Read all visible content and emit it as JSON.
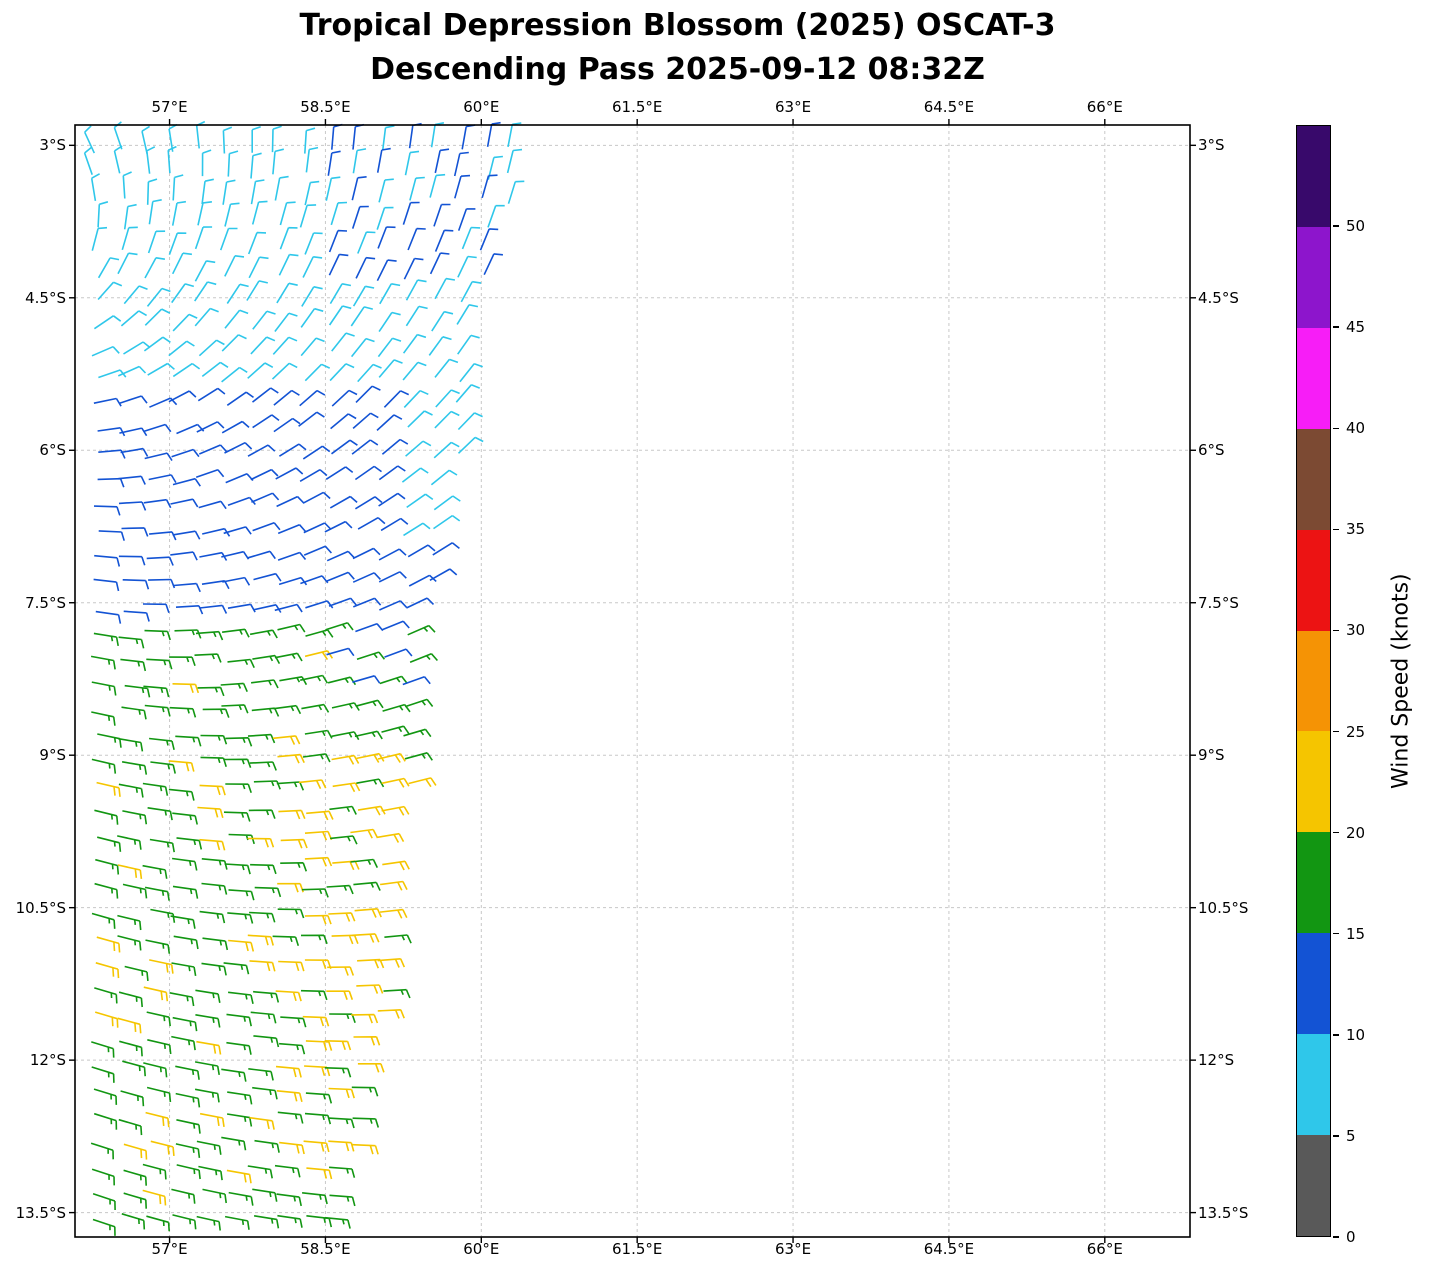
{
  "title": {
    "line1": "Tropical Depression Blossom (2025) OSCAT-3",
    "line2": "Descending Pass 2025-09-12 08:32Z"
  },
  "axes": {
    "lon_min": 56.09,
    "lon_max": 66.82,
    "lat_min": 2.8,
    "lat_max": 13.74,
    "x_ticks": [
      {
        "lon": 57.0,
        "label": "57°E"
      },
      {
        "lon": 58.5,
        "label": "58.5°E"
      },
      {
        "lon": 60.0,
        "label": "60°E"
      },
      {
        "lon": 61.5,
        "label": "61.5°E"
      },
      {
        "lon": 63.0,
        "label": "63°E"
      },
      {
        "lon": 64.5,
        "label": "64.5°E"
      },
      {
        "lon": 66.0,
        "label": "66°E"
      }
    ],
    "y_ticks": [
      {
        "lat": 3.0,
        "label": "3°S"
      },
      {
        "lat": 4.5,
        "label": "4.5°S"
      },
      {
        "lat": 6.0,
        "label": "6°S"
      },
      {
        "lat": 7.5,
        "label": "7.5°S"
      },
      {
        "lat": 9.0,
        "label": "9°S"
      },
      {
        "lat": 10.5,
        "label": "10.5°S"
      },
      {
        "lat": 12.0,
        "label": "12°S"
      },
      {
        "lat": 13.5,
        "label": "13.5°S"
      }
    ],
    "grid_color": "#c8c8c8"
  },
  "colorbar": {
    "label": "Wind Speed (knots)",
    "vmin": 0,
    "vmax": 55,
    "ticks": [
      0,
      5,
      10,
      15,
      20,
      25,
      30,
      35,
      40,
      45,
      50
    ],
    "segments": [
      {
        "upto": 5,
        "color": "#595959"
      },
      {
        "upto": 10,
        "color": "#2fc7ea"
      },
      {
        "upto": 15,
        "color": "#1353d4"
      },
      {
        "upto": 20,
        "color": "#129612"
      },
      {
        "upto": 25,
        "color": "#f5c500"
      },
      {
        "upto": 30,
        "color": "#f59305"
      },
      {
        "upto": 35,
        "color": "#ec1313"
      },
      {
        "upto": 40,
        "color": "#7c4a33"
      },
      {
        "upto": 45,
        "color": "#f71df7"
      },
      {
        "upto": 50,
        "color": "#8d15cc"
      },
      {
        "upto": 55,
        "color": "#38096b"
      }
    ]
  },
  "chart_data": {
    "type": "wind_barbs",
    "title": "Tropical Depression Blossom (2025) OSCAT-3 Descending Pass 2025-09-12 08:32Z",
    "xlabel_ticks_deg_east": [
      57,
      58.5,
      60,
      61.5,
      63,
      64.5,
      66
    ],
    "ylabel_ticks_deg_south": [
      3,
      4.5,
      6,
      7.5,
      9,
      10.5,
      12,
      13.5
    ],
    "speed_units": "knots",
    "grid": {
      "lat_start": 3.05,
      "lat_step": 0.25,
      "rows": 43,
      "lon_start": 56.28,
      "lon_step": 0.25,
      "jitter": 0.04
    },
    "swath_west_edge": 56.22,
    "swath_east_edge": [
      [
        3.0,
        60.5
      ],
      [
        4.5,
        60.05
      ],
      [
        6.0,
        59.85
      ],
      [
        7.5,
        59.55
      ],
      [
        9.0,
        59.4
      ],
      [
        10.5,
        59.2
      ],
      [
        12.0,
        59.05
      ],
      [
        13.5,
        58.72
      ]
    ],
    "vortex": {
      "center_lon": 55.3,
      "center_lat": 4.2,
      "inflow": 0.45
    },
    "speed_rules": [
      {
        "lat": [
          2.8,
          4.55
        ],
        "lon": [
          58.4,
          60.1
        ],
        "speed": 12,
        "alt": 8,
        "alt_prob": 0.3
      },
      {
        "lat": [
          2.8,
          5.45
        ],
        "lon": null,
        "speed": 8,
        "alt": null,
        "alt_prob": 0
      },
      {
        "lat": [
          5.45,
          6.95
        ],
        "lon": [
          59.2,
          61.0
        ],
        "speed": 8,
        "alt": null,
        "alt_prob": 0
      },
      {
        "lat": [
          5.45,
          7.65
        ],
        "lon": null,
        "speed": 12,
        "alt": null,
        "alt_prob": 0
      },
      {
        "lat": [
          7.65,
          8.45
        ],
        "lon": [
          58.45,
          59.65
        ],
        "speed": 12,
        "alt": 17,
        "alt_prob": 0.3
      },
      {
        "lat": [
          7.65,
          9.05
        ],
        "lon": null,
        "speed": 17,
        "alt": 22,
        "alt_prob": 0.07
      },
      {
        "lat": [
          9.05,
          11.25
        ],
        "lon": [
          57.95,
          60.0
        ],
        "speed": 22,
        "alt": 17,
        "alt_prob": 0.35
      },
      {
        "lat": [
          9.05,
          11.25
        ],
        "lon": null,
        "speed": 17,
        "alt": 22,
        "alt_prob": 0.2
      },
      {
        "lat": [
          12.95,
          13.8
        ],
        "lon": null,
        "speed": 17,
        "alt": 22,
        "alt_prob": 0.12
      },
      {
        "lat": [
          11.25,
          12.95
        ],
        "lon": [
          57.95,
          59.4
        ],
        "speed": 22,
        "alt": 17,
        "alt_prob": 0.4
      },
      {
        "lat": [
          11.25,
          12.95
        ],
        "lon": null,
        "speed": 17,
        "alt": 22,
        "alt_prob": 0.1
      }
    ],
    "barb_style": {
      "length": 23,
      "stroke": 1.6,
      "feather": 8.5,
      "half_feather": 4.8,
      "spacing": 5.2
    }
  }
}
